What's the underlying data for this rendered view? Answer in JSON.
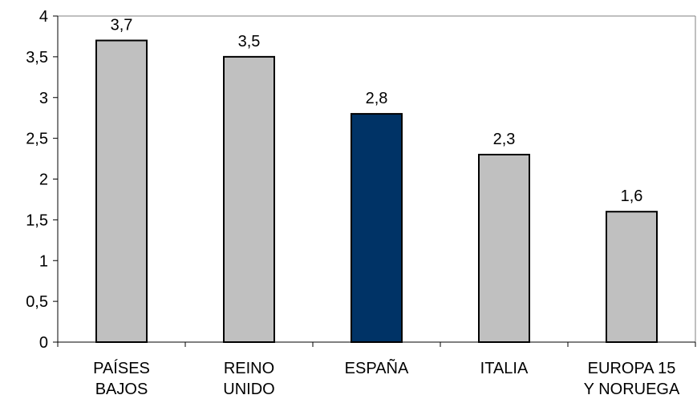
{
  "chart_data": {
    "type": "bar",
    "title": "",
    "xlabel": "",
    "ylabel": "",
    "categories": [
      [
        "PAÍSES",
        "BAJOS"
      ],
      [
        "REINO",
        "UNIDO"
      ],
      [
        "ESPAÑA"
      ],
      [
        "ITALIA"
      ],
      [
        "EUROPA 15",
        "Y NORUEGA"
      ]
    ],
    "values": [
      3.7,
      3.5,
      2.8,
      2.3,
      1.6
    ],
    "value_labels": [
      "3,7",
      "3,5",
      "2,8",
      "2,3",
      "1,6"
    ],
    "ylim": [
      0,
      4
    ],
    "yticks": [
      0,
      0.5,
      1,
      1.5,
      2,
      2.5,
      3,
      3.5,
      4
    ],
    "ytick_labels": [
      "0",
      "0,5",
      "1",
      "1,5",
      "2",
      "2,5",
      "3",
      "3,5",
      "4"
    ],
    "grid": false,
    "legend": "none",
    "colors": {
      "default_bar": "#c0c0c0",
      "highlight_bar": "#003366",
      "bar_stroke": "#000000",
      "axis": "#000000",
      "frame": "#808080"
    },
    "highlight_index": 2
  }
}
